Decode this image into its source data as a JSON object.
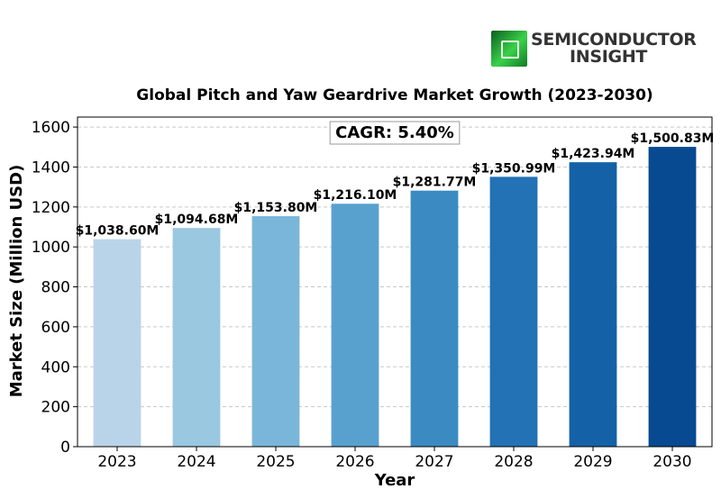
{
  "logo": {
    "line1": "SEMICONDUCTOR",
    "line2": "INSIGHT"
  },
  "colors": {
    "bars": [
      "#b9d4e9",
      "#9ac8e0",
      "#7ab6d9",
      "#58a1cf",
      "#3b8bc2",
      "#2272b5",
      "#1461a8",
      "#084a91"
    ],
    "grid": "#c8c8c8",
    "text": "#000000"
  },
  "chart_data": {
    "type": "bar",
    "title": "Global Pitch and Yaw Geardrive Market Growth (2023-2030)",
    "xlabel": "Year",
    "ylabel": "Market Size (Million USD)",
    "categories": [
      "2023",
      "2024",
      "2025",
      "2026",
      "2027",
      "2028",
      "2029",
      "2030"
    ],
    "values": [
      1038.6,
      1094.68,
      1153.8,
      1216.1,
      1281.77,
      1350.99,
      1423.94,
      1500.83
    ],
    "data_labels": [
      "$1,038.60M",
      "$1,094.68M",
      "$1,153.80M",
      "$1,216.10M",
      "$1,281.77M",
      "$1,350.99M",
      "$1,423.94M",
      "$1,500.83M"
    ],
    "ylim": [
      0,
      1650
    ],
    "yticks": [
      0,
      200,
      400,
      600,
      800,
      1000,
      1200,
      1400,
      1600
    ],
    "grid": "y-dashed",
    "annotation": "CAGR: 5.40%"
  }
}
